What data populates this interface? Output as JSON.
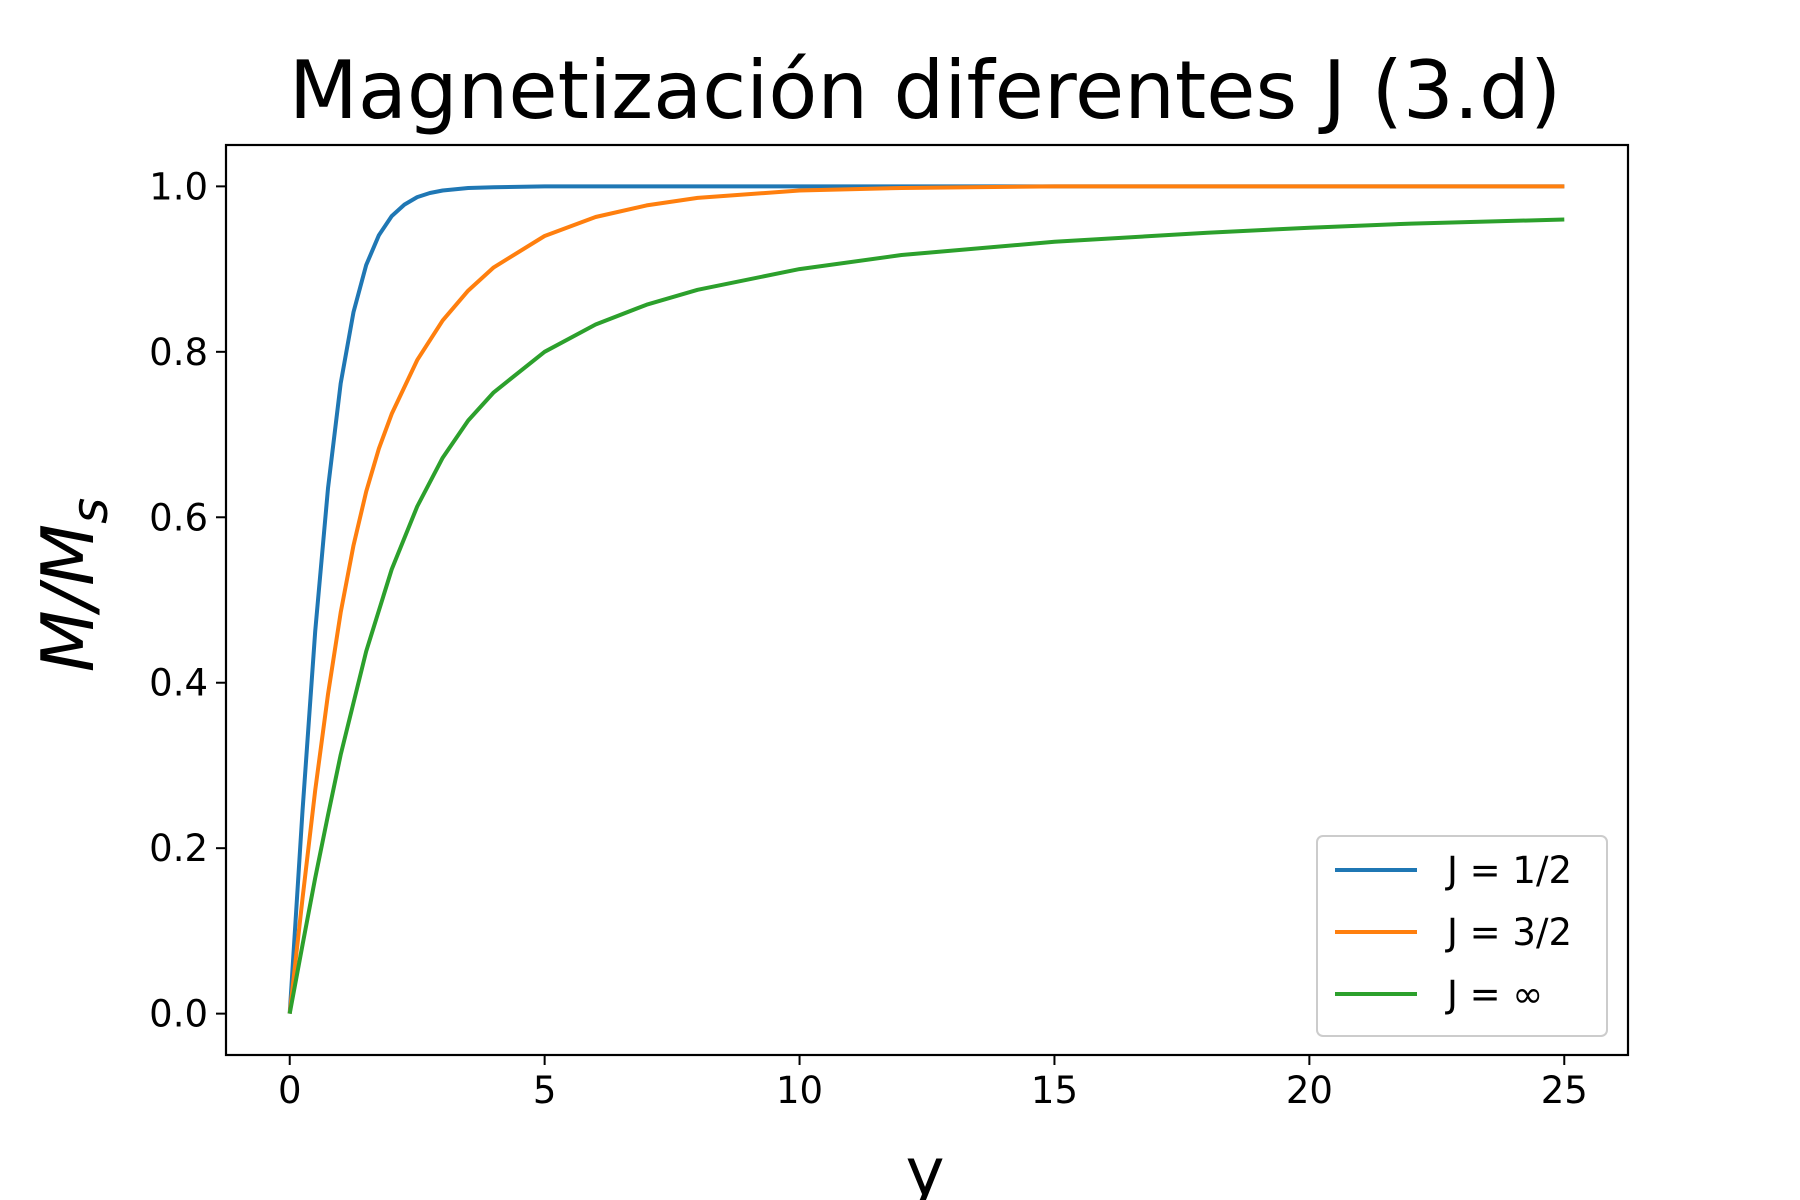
{
  "chart_data": {
    "type": "line",
    "title": "Magnetización diferentes J (3.d)",
    "xlabel": "y",
    "ylabel": "M/M",
    "ylabel_sub": "s",
    "xlim": [
      -1.25,
      26.25
    ],
    "ylim": [
      -0.05,
      1.05
    ],
    "xticks": [
      0,
      5,
      10,
      15,
      20,
      25
    ],
    "xtick_labels": [
      "0",
      "5",
      "10",
      "15",
      "20",
      "25"
    ],
    "yticks": [
      0.0,
      0.2,
      0.4,
      0.6,
      0.8,
      1.0
    ],
    "ytick_labels": [
      "0.0",
      "0.2",
      "0.4",
      "0.6",
      "0.8",
      "1.0"
    ],
    "grid": false,
    "legend_position": "lower-right",
    "series": [
      {
        "name": "J = 1/2",
        "color": "#1f77b4",
        "x": [
          0,
          0.25,
          0.5,
          0.75,
          1,
          1.25,
          1.5,
          1.75,
          2,
          2.25,
          2.5,
          2.75,
          3,
          3.5,
          4,
          5,
          6,
          8,
          10,
          15,
          20,
          25
        ],
        "y": [
          0,
          0.245,
          0.462,
          0.635,
          0.762,
          0.848,
          0.905,
          0.941,
          0.964,
          0.978,
          0.987,
          0.992,
          0.995,
          0.998,
          0.999,
          1.0,
          1.0,
          1.0,
          1.0,
          1.0,
          1.0,
          1.0
        ]
      },
      {
        "name": "J = 3/2",
        "color": "#ff7f0e",
        "x": [
          0,
          0.25,
          0.5,
          0.75,
          1,
          1.25,
          1.5,
          1.75,
          2,
          2.5,
          3,
          3.5,
          4,
          5,
          6,
          7,
          8,
          10,
          12,
          15,
          20,
          25
        ],
        "y": [
          0,
          0.139,
          0.27,
          0.386,
          0.485,
          0.566,
          0.631,
          0.683,
          0.725,
          0.79,
          0.838,
          0.874,
          0.902,
          0.94,
          0.963,
          0.977,
          0.986,
          0.995,
          0.998,
          1.0,
          1.0,
          1.0
        ]
      },
      {
        "name": "J = ∞",
        "color": "#2ca02c",
        "x": [
          0,
          0.25,
          0.5,
          0.75,
          1,
          1.5,
          2,
          2.5,
          3,
          3.5,
          4,
          5,
          6,
          7,
          8,
          10,
          12,
          15,
          18,
          20,
          22,
          25
        ],
        "y": [
          0,
          0.083,
          0.164,
          0.24,
          0.313,
          0.438,
          0.537,
          0.613,
          0.672,
          0.717,
          0.751,
          0.8,
          0.833,
          0.857,
          0.875,
          0.9,
          0.917,
          0.933,
          0.944,
          0.95,
          0.955,
          0.96
        ]
      }
    ]
  }
}
